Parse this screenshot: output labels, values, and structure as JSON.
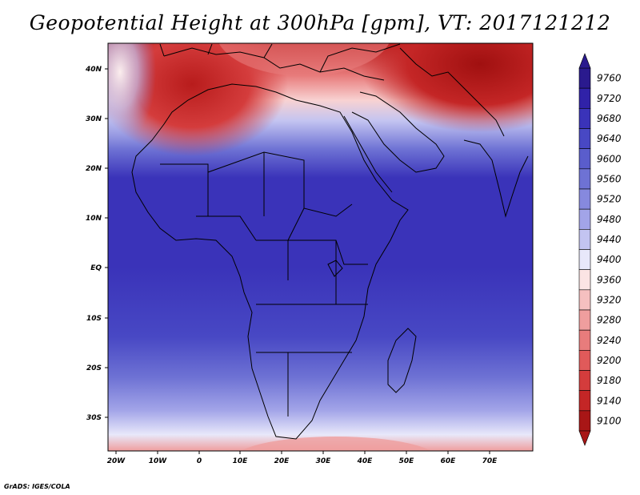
{
  "title": "Geopotential Height at 300hPa [gpm], VT: 2017121212",
  "credit": "GrADS: IGES/COLA",
  "lon_labels": [
    "20W",
    "10W",
    "0",
    "10E",
    "20E",
    "30E",
    "40E",
    "50E",
    "60E",
    "70E"
  ],
  "lat_labels": [
    "40N",
    "30N",
    "20N",
    "10N",
    "EQ",
    "10S",
    "20S",
    "30S"
  ],
  "colorbar": {
    "levels": [
      "9760",
      "9720",
      "9680",
      "9640",
      "9600",
      "9560",
      "9520",
      "9480",
      "9440",
      "9400",
      "9360",
      "9320",
      "9280",
      "9240",
      "9200",
      "9180",
      "9140",
      "9100"
    ],
    "colors": [
      "#2a1a8e",
      "#3022a8",
      "#3a33b9",
      "#4848c4",
      "#5a5dcc",
      "#6e72d4",
      "#8689de",
      "#a2a4e8",
      "#c3c4f1",
      "#e8e8fa",
      "#fbe4e4",
      "#f5c0c0",
      "#ef9e9e",
      "#e87c7c",
      "#e05a5a",
      "#d43c3c",
      "#c42626",
      "#a81616"
    ]
  },
  "chart_data": {
    "type": "heatmap",
    "title": "Geopotential Height at 300hPa [gpm], VT: 2017121212",
    "variable": "Geopotential Height",
    "level_hPa": 300,
    "units": "gpm",
    "valid_time": "2017121212",
    "lon_range": [
      -22,
      80
    ],
    "lat_range": [
      -37,
      45
    ],
    "contour_levels": [
      9100,
      9140,
      9180,
      9200,
      9240,
      9280,
      9320,
      9360,
      9400,
      9440,
      9480,
      9520,
      9560,
      9600,
      9640,
      9680,
      9720,
      9760
    ]
  }
}
